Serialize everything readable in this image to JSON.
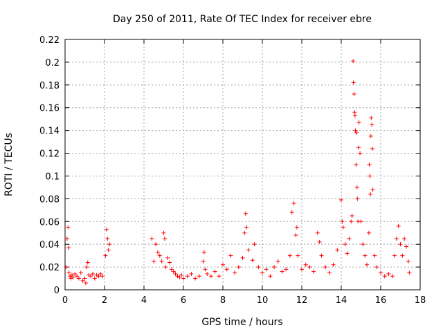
{
  "chart_data": {
    "type": "scatter",
    "title": "Day 250 of 2011, Rate Of TEC Index for receiver ebre",
    "xlabel": "GPS time / hours",
    "ylabel": "ROTI / TECUs",
    "xlim": [
      0,
      18
    ],
    "ylim": [
      0,
      0.22
    ],
    "xticks": [
      "0",
      "2",
      "4",
      "6",
      "8",
      "10",
      "12",
      "14",
      "16",
      "18"
    ],
    "yticks": [
      "0",
      "0.02",
      "0.04",
      "0.06",
      "0.08",
      "0.1",
      "0.12",
      "0.14",
      "0.16",
      "0.18",
      "0.2",
      "0.22"
    ],
    "grid": true,
    "marker": "+",
    "color": "#ff0000",
    "series": [
      {
        "name": "ROTI",
        "x": [
          0.05,
          0.1,
          0.15,
          0.18,
          0.2,
          0.25,
          0.3,
          0.35,
          0.4,
          0.5,
          0.6,
          0.7,
          0.8,
          0.9,
          1.0,
          1.05,
          1.1,
          1.15,
          1.2,
          1.3,
          1.4,
          1.5,
          1.6,
          1.7,
          1.8,
          1.9,
          2.05,
          2.1,
          2.15,
          2.2,
          2.25,
          4.4,
          4.5,
          4.6,
          4.7,
          4.8,
          4.9,
          5.0,
          5.05,
          5.1,
          5.2,
          5.3,
          5.4,
          5.5,
          5.6,
          5.7,
          5.8,
          5.9,
          6.0,
          6.2,
          6.4,
          6.6,
          6.8,
          7.0,
          7.05,
          7.1,
          7.2,
          7.4,
          7.6,
          7.8,
          8.0,
          8.2,
          8.4,
          8.6,
          8.8,
          9.0,
          9.1,
          9.15,
          9.2,
          9.3,
          9.5,
          9.6,
          9.8,
          10.0,
          10.2,
          10.4,
          10.6,
          10.8,
          11.0,
          11.2,
          11.4,
          11.5,
          11.6,
          11.7,
          11.75,
          11.8,
          12.0,
          12.2,
          12.4,
          12.6,
          12.8,
          12.9,
          13.0,
          13.2,
          13.4,
          13.6,
          13.8,
          14.0,
          14.05,
          14.1,
          14.2,
          14.3,
          14.4,
          14.5,
          14.55,
          14.6,
          14.62,
          14.65,
          14.68,
          14.7,
          14.72,
          14.75,
          14.78,
          14.8,
          14.82,
          14.85,
          14.88,
          14.9,
          14.95,
          15.0,
          15.1,
          15.2,
          15.3,
          15.4,
          15.42,
          15.45,
          15.48,
          15.5,
          15.52,
          15.55,
          15.58,
          15.6,
          15.7,
          15.8,
          16.0,
          16.2,
          16.4,
          16.6,
          16.7,
          16.8,
          16.9,
          17.0,
          17.1,
          17.2,
          17.3,
          17.4,
          17.45
        ],
        "y": [
          0.02,
          0.045,
          0.055,
          0.037,
          0.015,
          0.012,
          0.01,
          0.013,
          0.011,
          0.014,
          0.012,
          0.01,
          0.015,
          0.008,
          0.01,
          0.006,
          0.02,
          0.024,
          0.013,
          0.012,
          0.014,
          0.01,
          0.013,
          0.012,
          0.014,
          0.012,
          0.03,
          0.053,
          0.045,
          0.035,
          0.04,
          0.045,
          0.025,
          0.04,
          0.033,
          0.03,
          0.025,
          0.05,
          0.045,
          0.02,
          0.028,
          0.024,
          0.018,
          0.016,
          0.014,
          0.012,
          0.011,
          0.013,
          0.01,
          0.012,
          0.014,
          0.01,
          0.012,
          0.025,
          0.033,
          0.018,
          0.014,
          0.012,
          0.016,
          0.012,
          0.022,
          0.018,
          0.03,
          0.015,
          0.02,
          0.028,
          0.05,
          0.067,
          0.055,
          0.035,
          0.026,
          0.04,
          0.02,
          0.015,
          0.018,
          0.012,
          0.02,
          0.025,
          0.016,
          0.018,
          0.03,
          0.068,
          0.076,
          0.048,
          0.055,
          0.03,
          0.018,
          0.022,
          0.02,
          0.016,
          0.05,
          0.042,
          0.03,
          0.02,
          0.015,
          0.022,
          0.035,
          0.079,
          0.06,
          0.055,
          0.04,
          0.032,
          0.045,
          0.06,
          0.065,
          0.201,
          0.182,
          0.172,
          0.156,
          0.153,
          0.14,
          0.11,
          0.138,
          0.09,
          0.08,
          0.06,
          0.125,
          0.147,
          0.12,
          0.06,
          0.04,
          0.03,
          0.022,
          0.05,
          0.11,
          0.1,
          0.084,
          0.135,
          0.151,
          0.145,
          0.124,
          0.088,
          0.03,
          0.02,
          0.015,
          0.012,
          0.014,
          0.012,
          0.03,
          0.045,
          0.056,
          0.04,
          0.03,
          0.045,
          0.038,
          0.025,
          0.015
        ]
      }
    ]
  }
}
